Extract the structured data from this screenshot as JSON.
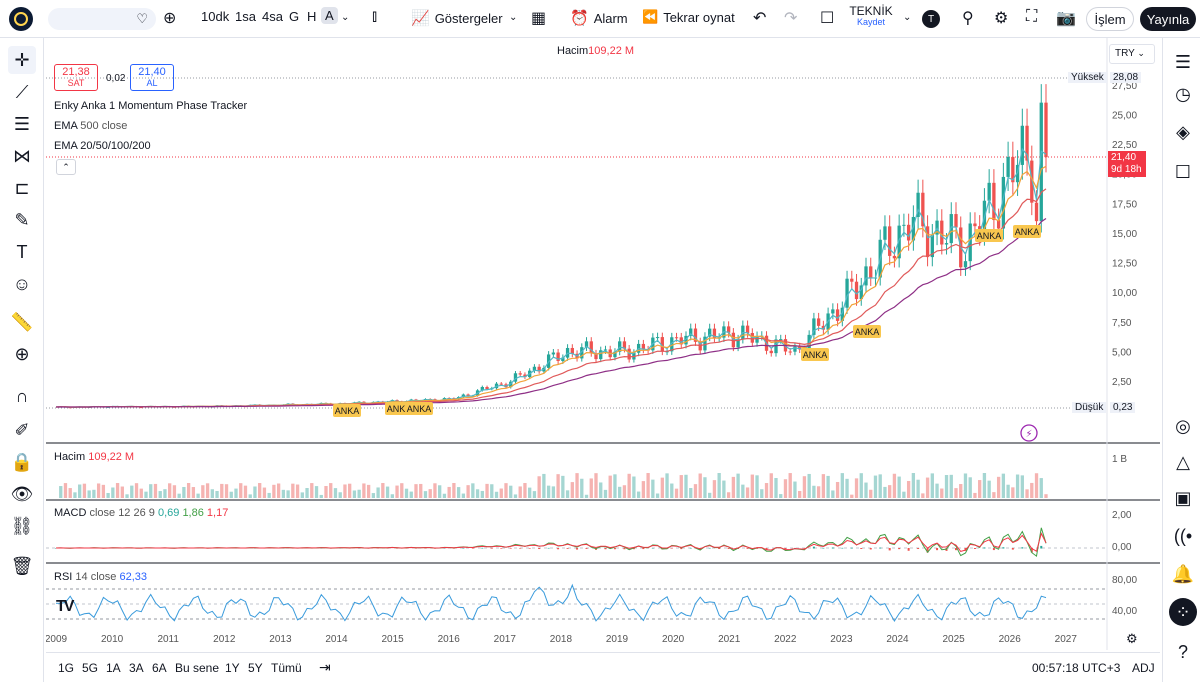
{
  "toolbar": {
    "symbol_value": "",
    "intervals": [
      "10dk",
      "1sa",
      "4sa",
      "G",
      "H",
      "A"
    ],
    "active_interval": "A",
    "indicators_label": "Göstergeler",
    "alarm_label": "Alarm",
    "replay_label": "Tekrar oynat",
    "layout_name": "TEKNİK",
    "save_label": "Kaydet",
    "user_badge": "T",
    "trade_label": "İşlem",
    "publish_label": "Yayınla"
  },
  "chart": {
    "volume_header_label": "Hacim",
    "volume_header_value": "109,22 M",
    "currency": "TRY",
    "sell_price": "21,38",
    "sell_label": "SAT",
    "spread": "0,02",
    "buy_price": "21,40",
    "buy_label": "AL",
    "indicator_1": "Enky Anka 1 Momentum Phase Tracker",
    "indicator_2_name": "EMA",
    "indicator_2_params": "500 close",
    "indicator_3": "EMA 20/50/100/200",
    "high_label": "Yüksek",
    "high_value": "28,08",
    "low_label": "Düşük",
    "low_value": "0,23",
    "last_price": "21,40",
    "countdown": "9d 18h",
    "signal_label": "ANKA",
    "price_axis": [
      "27,50",
      "25,00",
      "22,50",
      "20,00",
      "17,50",
      "15,00",
      "12,50",
      "10,00",
      "7,50",
      "5,00",
      "2,50"
    ],
    "time_axis": [
      "2009",
      "2010",
      "2011",
      "2012",
      "2013",
      "2014",
      "2015",
      "2016",
      "2017",
      "2018",
      "2019",
      "2020",
      "2021",
      "2022",
      "2023",
      "2024",
      "2025",
      "2026",
      "2027"
    ]
  },
  "volume_pane": {
    "label": "Hacim",
    "value": "109,22 M",
    "axis": [
      "1 B"
    ]
  },
  "macd_pane": {
    "label": "MACD",
    "params": "close 12 26 9",
    "v1": "0,69",
    "v2": "1,86",
    "v3": "1,17",
    "axis": [
      "2,00",
      "0,00"
    ]
  },
  "rsi_pane": {
    "label": "RSI",
    "params": "14 close",
    "value": "62,33",
    "axis": [
      "80,00",
      "40,00"
    ]
  },
  "bottom": {
    "ranges": [
      "1G",
      "5G",
      "1A",
      "3A",
      "6A",
      "Bu sene",
      "1Y",
      "5Y",
      "Tümü"
    ],
    "clock": "00:57:18 UTC+3",
    "adj": "ADJ"
  },
  "colors": {
    "up": "#26a69a",
    "down": "#ef5350",
    "ema20": "#4fb8c7",
    "ema50": "#f2a33a",
    "ema100": "#e05a5a",
    "ema200": "#8e2f86",
    "accent": "#2962ff",
    "signal": "#f9c74f"
  },
  "chart_data": {
    "type": "candlestick",
    "x": [
      "2009",
      "2010",
      "2011",
      "2012",
      "2013",
      "2014",
      "2015",
      "2016",
      "2017",
      "2018",
      "2019",
      "2020",
      "2021",
      "2022",
      "2023",
      "2024",
      "2025",
      "2026"
    ],
    "close": [
      0.3,
      0.35,
      0.35,
      0.4,
      0.5,
      0.6,
      0.8,
      1.0,
      2.5,
      5.0,
      5.0,
      6.0,
      6.5,
      5.0,
      10.0,
      16.0,
      14.0,
      21.4
    ],
    "ylim": [
      0,
      28.08
    ]
  }
}
